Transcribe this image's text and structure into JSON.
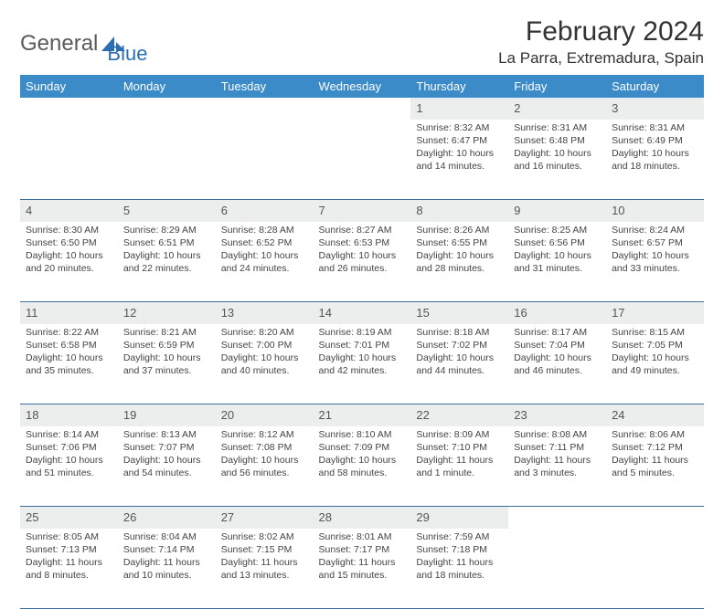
{
  "brand": {
    "word1": "General",
    "word2": "Blue"
  },
  "title": "February 2024",
  "location": "La Parra, Extremadura, Spain",
  "colors": {
    "header_bg": "#3b8bc9",
    "header_text": "#ffffff",
    "daynum_bg": "#eceded",
    "row_border": "#3b6fa0",
    "logo_gray": "#5a5a5a",
    "logo_blue": "#2c6fb0"
  },
  "weekdays": [
    "Sunday",
    "Monday",
    "Tuesday",
    "Wednesday",
    "Thursday",
    "Friday",
    "Saturday"
  ],
  "weeks": [
    {
      "nums": [
        "",
        "",
        "",
        "",
        "1",
        "2",
        "3"
      ],
      "cells": [
        null,
        null,
        null,
        null,
        {
          "sunrise": "Sunrise: 8:32 AM",
          "sunset": "Sunset: 6:47 PM",
          "day1": "Daylight: 10 hours",
          "day2": "and 14 minutes."
        },
        {
          "sunrise": "Sunrise: 8:31 AM",
          "sunset": "Sunset: 6:48 PM",
          "day1": "Daylight: 10 hours",
          "day2": "and 16 minutes."
        },
        {
          "sunrise": "Sunrise: 8:31 AM",
          "sunset": "Sunset: 6:49 PM",
          "day1": "Daylight: 10 hours",
          "day2": "and 18 minutes."
        }
      ]
    },
    {
      "nums": [
        "4",
        "5",
        "6",
        "7",
        "8",
        "9",
        "10"
      ],
      "cells": [
        {
          "sunrise": "Sunrise: 8:30 AM",
          "sunset": "Sunset: 6:50 PM",
          "day1": "Daylight: 10 hours",
          "day2": "and 20 minutes."
        },
        {
          "sunrise": "Sunrise: 8:29 AM",
          "sunset": "Sunset: 6:51 PM",
          "day1": "Daylight: 10 hours",
          "day2": "and 22 minutes."
        },
        {
          "sunrise": "Sunrise: 8:28 AM",
          "sunset": "Sunset: 6:52 PM",
          "day1": "Daylight: 10 hours",
          "day2": "and 24 minutes."
        },
        {
          "sunrise": "Sunrise: 8:27 AM",
          "sunset": "Sunset: 6:53 PM",
          "day1": "Daylight: 10 hours",
          "day2": "and 26 minutes."
        },
        {
          "sunrise": "Sunrise: 8:26 AM",
          "sunset": "Sunset: 6:55 PM",
          "day1": "Daylight: 10 hours",
          "day2": "and 28 minutes."
        },
        {
          "sunrise": "Sunrise: 8:25 AM",
          "sunset": "Sunset: 6:56 PM",
          "day1": "Daylight: 10 hours",
          "day2": "and 31 minutes."
        },
        {
          "sunrise": "Sunrise: 8:24 AM",
          "sunset": "Sunset: 6:57 PM",
          "day1": "Daylight: 10 hours",
          "day2": "and 33 minutes."
        }
      ]
    },
    {
      "nums": [
        "11",
        "12",
        "13",
        "14",
        "15",
        "16",
        "17"
      ],
      "cells": [
        {
          "sunrise": "Sunrise: 8:22 AM",
          "sunset": "Sunset: 6:58 PM",
          "day1": "Daylight: 10 hours",
          "day2": "and 35 minutes."
        },
        {
          "sunrise": "Sunrise: 8:21 AM",
          "sunset": "Sunset: 6:59 PM",
          "day1": "Daylight: 10 hours",
          "day2": "and 37 minutes."
        },
        {
          "sunrise": "Sunrise: 8:20 AM",
          "sunset": "Sunset: 7:00 PM",
          "day1": "Daylight: 10 hours",
          "day2": "and 40 minutes."
        },
        {
          "sunrise": "Sunrise: 8:19 AM",
          "sunset": "Sunset: 7:01 PM",
          "day1": "Daylight: 10 hours",
          "day2": "and 42 minutes."
        },
        {
          "sunrise": "Sunrise: 8:18 AM",
          "sunset": "Sunset: 7:02 PM",
          "day1": "Daylight: 10 hours",
          "day2": "and 44 minutes."
        },
        {
          "sunrise": "Sunrise: 8:17 AM",
          "sunset": "Sunset: 7:04 PM",
          "day1": "Daylight: 10 hours",
          "day2": "and 46 minutes."
        },
        {
          "sunrise": "Sunrise: 8:15 AM",
          "sunset": "Sunset: 7:05 PM",
          "day1": "Daylight: 10 hours",
          "day2": "and 49 minutes."
        }
      ]
    },
    {
      "nums": [
        "18",
        "19",
        "20",
        "21",
        "22",
        "23",
        "24"
      ],
      "cells": [
        {
          "sunrise": "Sunrise: 8:14 AM",
          "sunset": "Sunset: 7:06 PM",
          "day1": "Daylight: 10 hours",
          "day2": "and 51 minutes."
        },
        {
          "sunrise": "Sunrise: 8:13 AM",
          "sunset": "Sunset: 7:07 PM",
          "day1": "Daylight: 10 hours",
          "day2": "and 54 minutes."
        },
        {
          "sunrise": "Sunrise: 8:12 AM",
          "sunset": "Sunset: 7:08 PM",
          "day1": "Daylight: 10 hours",
          "day2": "and 56 minutes."
        },
        {
          "sunrise": "Sunrise: 8:10 AM",
          "sunset": "Sunset: 7:09 PM",
          "day1": "Daylight: 10 hours",
          "day2": "and 58 minutes."
        },
        {
          "sunrise": "Sunrise: 8:09 AM",
          "sunset": "Sunset: 7:10 PM",
          "day1": "Daylight: 11 hours",
          "day2": "and 1 minute."
        },
        {
          "sunrise": "Sunrise: 8:08 AM",
          "sunset": "Sunset: 7:11 PM",
          "day1": "Daylight: 11 hours",
          "day2": "and 3 minutes."
        },
        {
          "sunrise": "Sunrise: 8:06 AM",
          "sunset": "Sunset: 7:12 PM",
          "day1": "Daylight: 11 hours",
          "day2": "and 5 minutes."
        }
      ]
    },
    {
      "nums": [
        "25",
        "26",
        "27",
        "28",
        "29",
        "",
        ""
      ],
      "cells": [
        {
          "sunrise": "Sunrise: 8:05 AM",
          "sunset": "Sunset: 7:13 PM",
          "day1": "Daylight: 11 hours",
          "day2": "and 8 minutes."
        },
        {
          "sunrise": "Sunrise: 8:04 AM",
          "sunset": "Sunset: 7:14 PM",
          "day1": "Daylight: 11 hours",
          "day2": "and 10 minutes."
        },
        {
          "sunrise": "Sunrise: 8:02 AM",
          "sunset": "Sunset: 7:15 PM",
          "day1": "Daylight: 11 hours",
          "day2": "and 13 minutes."
        },
        {
          "sunrise": "Sunrise: 8:01 AM",
          "sunset": "Sunset: 7:17 PM",
          "day1": "Daylight: 11 hours",
          "day2": "and 15 minutes."
        },
        {
          "sunrise": "Sunrise: 7:59 AM",
          "sunset": "Sunset: 7:18 PM",
          "day1": "Daylight: 11 hours",
          "day2": "and 18 minutes."
        },
        null,
        null
      ]
    }
  ]
}
